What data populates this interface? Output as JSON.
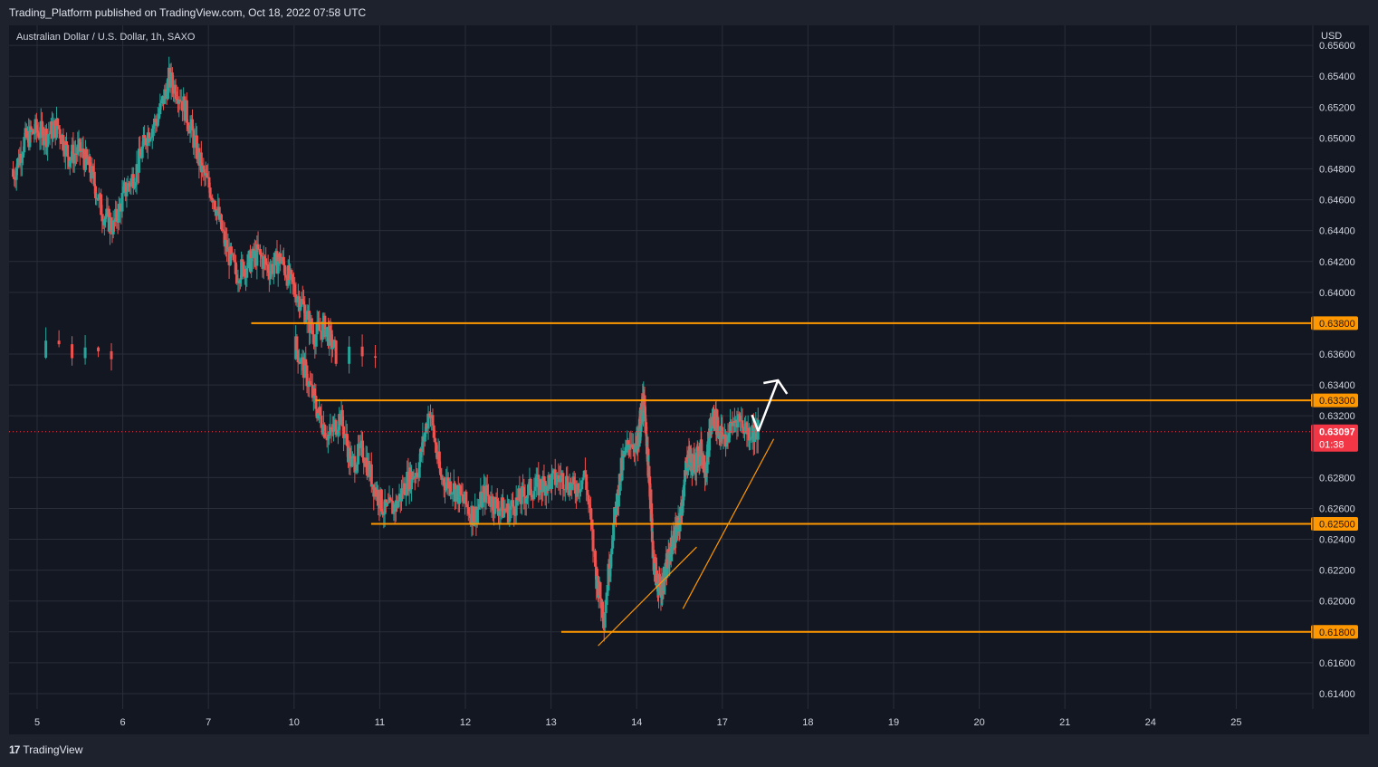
{
  "header": {
    "publisher_line": "Trading_Platform published on TradingView.com, Oct 18, 2022 07:58 UTC",
    "symbol_line": "Australian Dollar / U.S. Dollar, 1h, SAXO",
    "currency": "USD"
  },
  "footer": {
    "brand": "TradingView",
    "logo_mark": "17"
  },
  "colors": {
    "background": "#131722",
    "frame": "#1e222d",
    "grid": "#2a2e39",
    "up": "#26a69a",
    "down": "#ef5350",
    "level": "#ff9800",
    "trend": "#ff9800",
    "arrow": "#ffffff",
    "current": "#f23645"
  },
  "chart_data": {
    "type": "candlestick",
    "title": "Australian Dollar / U.S. Dollar, 1h, SAXO",
    "ylabel": "USD",
    "x_tick_labels": [
      "5",
      "6",
      "7",
      "10",
      "11",
      "12",
      "13",
      "14",
      "17",
      "18",
      "19",
      "20",
      "21",
      "24",
      "25"
    ],
    "y_ticks": [
      0.614,
      0.616,
      0.618,
      0.62,
      0.622,
      0.624,
      0.626,
      0.628,
      0.632,
      0.634,
      0.636,
      0.64,
      0.642,
      0.644,
      0.646,
      0.648,
      0.65,
      0.652,
      0.654,
      0.656
    ],
    "y_tick_labels": [
      "0.61400",
      "0.61600",
      "0.61800",
      "0.62000",
      "0.62200",
      "0.62400",
      "0.62600",
      "0.62800",
      "0.63200",
      "0.63400",
      "0.63600",
      "0.64000",
      "0.64200",
      "0.64400",
      "0.64600",
      "0.64800",
      "0.65000",
      "0.65200",
      "0.65400",
      "0.65600"
    ],
    "ylim": [
      0.613,
      0.6573
    ],
    "grid": true,
    "horizontal_levels": [
      {
        "value": 0.638,
        "label": "0.63800",
        "x_start_day": 7.5
      },
      {
        "value": 0.633,
        "label": "0.63300",
        "x_start_day": 10.25
      },
      {
        "value": 0.625,
        "label": "0.62500",
        "x_start_day": 10.9
      },
      {
        "value": 0.618,
        "label": "0.61800",
        "x_start_day": 13.12
      }
    ],
    "current_price": {
      "value": 0.63097,
      "label": "0.63097",
      "countdown": "01:38"
    },
    "trend_lines": [
      {
        "from": [
          13.55,
          0.6171
        ],
        "to": [
          16.25,
          0.6235
        ]
      },
      {
        "from": [
          15.85,
          0.6195
        ],
        "to": [
          17.6,
          0.6305
        ]
      }
    ],
    "projection_arrow": [
      [
        17.42,
        0.631
      ],
      [
        17.65,
        0.6343
      ]
    ],
    "ohlc_series": [
      {
        "d": 4.72,
        "c": 0.6475
      },
      {
        "d": 4.85,
        "c": 0.6498
      },
      {
        "d": 4.98,
        "c": 0.6505
      },
      {
        "d": 5.11,
        "c": 0.6502
      },
      {
        "d": 5.24,
        "c": 0.6508
      },
      {
        "d": 5.37,
        "c": 0.6488
      },
      {
        "d": 5.5,
        "c": 0.6492
      },
      {
        "d": 5.63,
        "c": 0.6478
      },
      {
        "d": 5.76,
        "c": 0.6452
      },
      {
        "d": 5.89,
        "c": 0.6442
      },
      {
        "d": 6.02,
        "c": 0.6465
      },
      {
        "d": 6.15,
        "c": 0.6478
      },
      {
        "d": 6.28,
        "c": 0.6502
      },
      {
        "d": 6.41,
        "c": 0.6513
      },
      {
        "d": 6.54,
        "c": 0.6538
      },
      {
        "d": 6.67,
        "c": 0.6528
      },
      {
        "d": 6.8,
        "c": 0.6505
      },
      {
        "d": 6.93,
        "c": 0.6478
      },
      {
        "d": 7.06,
        "c": 0.6462
      },
      {
        "d": 7.19,
        "c": 0.6432
      },
      {
        "d": 7.32,
        "c": 0.6412
      },
      {
        "d": 7.45,
        "c": 0.6418
      },
      {
        "d": 7.58,
        "c": 0.6425
      },
      {
        "d": 7.71,
        "c": 0.6415
      },
      {
        "d": 7.84,
        "c": 0.6422
      },
      {
        "d": 7.97,
        "c": 0.6405
      },
      {
        "d": 8.1,
        "c": 0.6392
      },
      {
        "d": 8.23,
        "c": 0.6372
      },
      {
        "d": 8.36,
        "c": 0.6378
      },
      {
        "d": 8.49,
        "c": 0.636
      },
      {
        "d": 10.02,
        "c": 0.6365
      },
      {
        "d": 10.15,
        "c": 0.6345
      },
      {
        "d": 10.28,
        "c": 0.6322
      },
      {
        "d": 10.41,
        "c": 0.6306
      },
      {
        "d": 10.54,
        "c": 0.632
      },
      {
        "d": 10.67,
        "c": 0.6288
      },
      {
        "d": 10.8,
        "c": 0.6298
      },
      {
        "d": 10.93,
        "c": 0.6275
      },
      {
        "d": 11.06,
        "c": 0.6258
      },
      {
        "d": 11.19,
        "c": 0.6262
      },
      {
        "d": 11.32,
        "c": 0.6278
      },
      {
        "d": 11.45,
        "c": 0.6286
      },
      {
        "d": 11.58,
        "c": 0.6325
      },
      {
        "d": 11.71,
        "c": 0.628
      },
      {
        "d": 11.84,
        "c": 0.6275
      },
      {
        "d": 11.97,
        "c": 0.6265
      },
      {
        "d": 12.1,
        "c": 0.6255
      },
      {
        "d": 12.23,
        "c": 0.627
      },
      {
        "d": 12.36,
        "c": 0.6262
      },
      {
        "d": 12.49,
        "c": 0.6258
      },
      {
        "d": 12.62,
        "c": 0.6265
      },
      {
        "d": 12.75,
        "c": 0.6272
      },
      {
        "d": 12.88,
        "c": 0.6275
      },
      {
        "d": 13.01,
        "c": 0.6278
      },
      {
        "d": 13.14,
        "c": 0.628
      },
      {
        "d": 13.27,
        "c": 0.6272
      },
      {
        "d": 13.4,
        "c": 0.6282
      },
      {
        "d": 13.53,
        "c": 0.6215
      },
      {
        "d": 13.62,
        "c": 0.619
      },
      {
        "d": 13.72,
        "c": 0.6245
      },
      {
        "d": 13.82,
        "c": 0.6285
      },
      {
        "d": 13.92,
        "c": 0.6305
      },
      {
        "d": 14.05,
        "c": 0.6298
      },
      {
        "d": 14.18,
        "c": 0.6312
      },
      {
        "d": 14.31,
        "c": 0.6325
      },
      {
        "d": 14.44,
        "c": 0.6328
      },
      {
        "d": 14.57,
        "c": 0.6305
      },
      {
        "d": 14.7,
        "c": 0.6285
      },
      {
        "d": 14.83,
        "c": 0.6262
      },
      {
        "d": 14.96,
        "c": 0.6232
      },
      {
        "d": 15.09,
        "c": 0.6212
      },
      {
        "d": 15.22,
        "c": 0.6208
      },
      {
        "d": 15.35,
        "c": 0.6218
      },
      {
        "d": 15.48,
        "c": 0.6232
      },
      {
        "d": 15.61,
        "c": 0.6242
      },
      {
        "d": 15.74,
        "c": 0.6248
      },
      {
        "d": 15.87,
        "c": 0.6272
      },
      {
        "d": 16.0,
        "c": 0.6295
      },
      {
        "d": 16.13,
        "c": 0.6288
      },
      {
        "d": 16.26,
        "c": 0.6292
      },
      {
        "d": 16.39,
        "c": 0.6298
      },
      {
        "d": 16.52,
        "c": 0.6285
      },
      {
        "d": 16.65,
        "c": 0.6312
      },
      {
        "d": 16.78,
        "c": 0.632
      },
      {
        "d": 16.91,
        "c": 0.631
      },
      {
        "d": 17.04,
        "c": 0.6305
      },
      {
        "d": 17.17,
        "c": 0.632
      },
      {
        "d": 17.3,
        "c": 0.631
      }
    ]
  }
}
